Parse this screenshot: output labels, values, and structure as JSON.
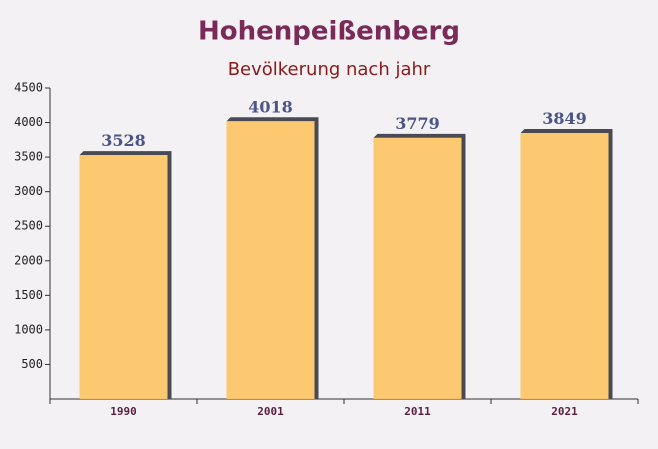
{
  "chart_data": {
    "type": "bar",
    "title": "Hohenpeißenberg",
    "subtitle": "Bevölkerung nach jahr",
    "categories": [
      "1990",
      "2001",
      "2011",
      "2021"
    ],
    "values": [
      3528,
      4018,
      3779,
      3849
    ],
    "color": "#fdc566",
    "ylim": [
      0,
      4500
    ],
    "yticks": [
      500,
      1000,
      1500,
      2000,
      2500,
      3000,
      3500,
      4000,
      4500
    ]
  }
}
